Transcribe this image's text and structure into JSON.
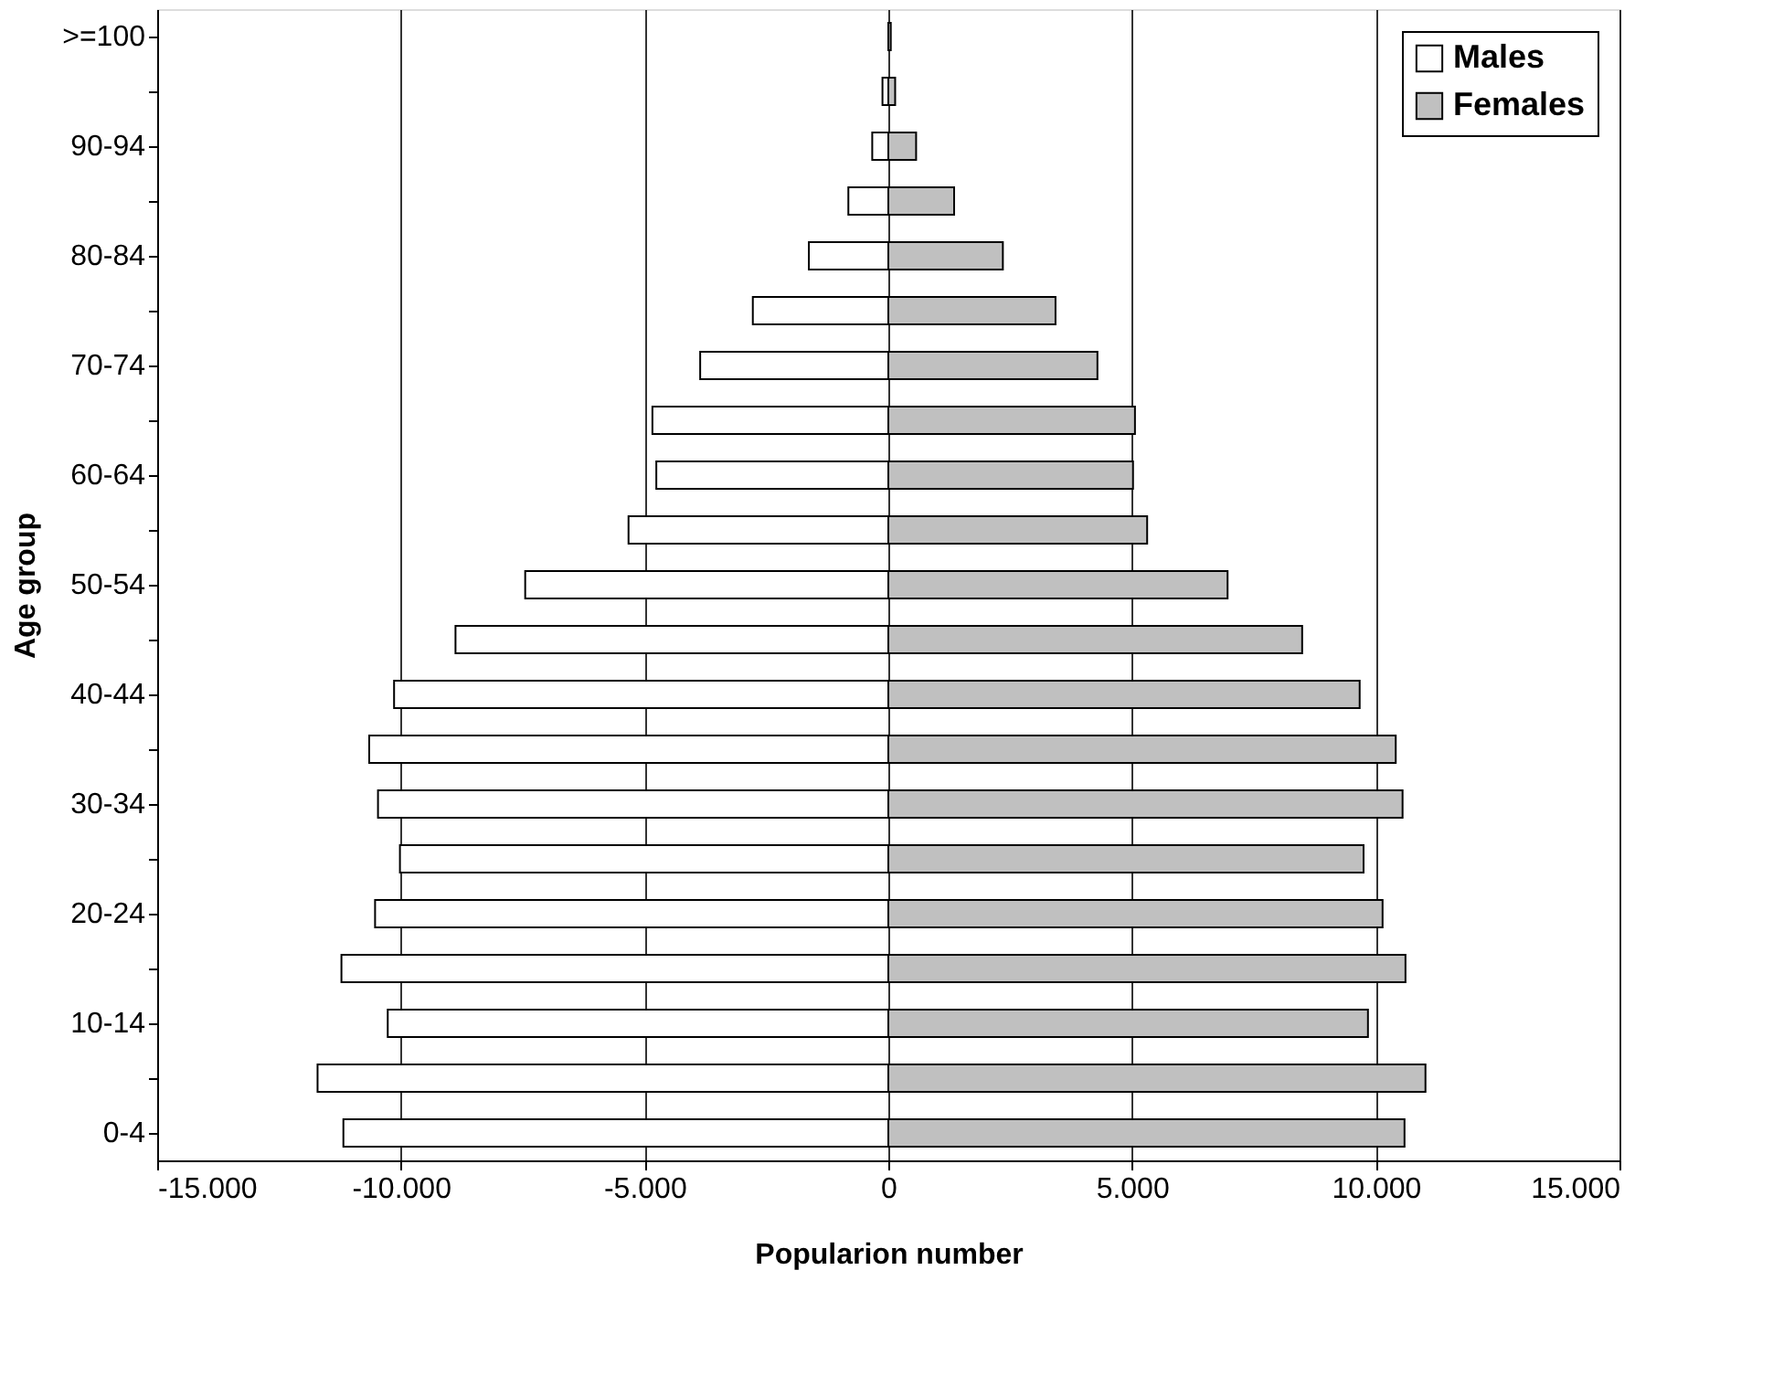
{
  "chart_data": {
    "type": "bar",
    "orientation": "horizontal",
    "xlabel": "Popularion number",
    "ylabel": "Age group",
    "categories": [
      ">=100",
      null,
      "90-94",
      null,
      "80-84",
      null,
      "70-74",
      null,
      "60-64",
      null,
      "50-54",
      null,
      "40-44",
      null,
      "30-34",
      null,
      "20-24",
      null,
      "10-14",
      null,
      "0-4"
    ],
    "series": [
      {
        "name": "Males",
        "color": "#ffffff",
        "values": [
          null,
          -120,
          -330,
          -820,
          -1630,
          -2780,
          -3860,
          -4840,
          -4760,
          -5330,
          -7450,
          -8880,
          -10140,
          -10650,
          -10470,
          -10020,
          -10530,
          -11220,
          -10270,
          -11710,
          -11180
        ]
      },
      {
        "name": "Females",
        "color": "#c0c0c0",
        "values": [
          50,
          140,
          570,
          1350,
          2350,
          3430,
          4290,
          5060,
          5020,
          5310,
          6960,
          8490,
          9670,
          10410,
          10550,
          9750,
          10140,
          10610,
          9840,
          11020,
          10590
        ]
      }
    ],
    "xlim": [
      -15000,
      15000
    ],
    "xticks": [
      {
        "value": -15000,
        "label": "-15.000"
      },
      {
        "value": -10000,
        "label": "-10.000"
      },
      {
        "value": -5000,
        "label": "-5.000"
      },
      0,
      {
        "value": 5000,
        "label": "5.000"
      },
      {
        "value": 10000,
        "label": "10.000"
      },
      {
        "value": 15000,
        "label": "15.000"
      }
    ],
    "stacked": true,
    "grid": "x",
    "legend": "top right"
  }
}
